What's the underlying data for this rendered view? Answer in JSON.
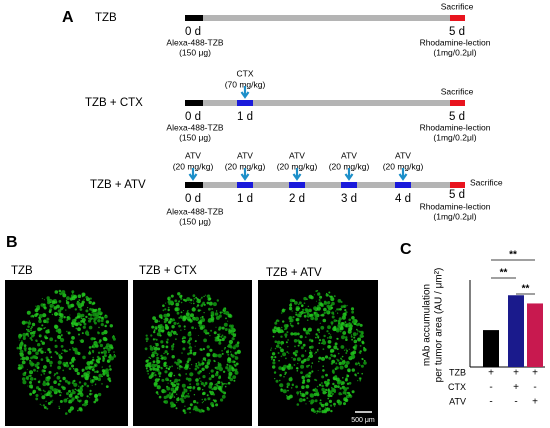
{
  "panel_a": {
    "label": "A",
    "timelines": [
      {
        "name": "TZB",
        "sacrifice": "Sacrifice",
        "days": [
          "0 d",
          "5 d"
        ],
        "start_label": [
          "Alexa-488-TZB",
          "(150 μg)"
        ],
        "end_label": [
          "Rhodamine-lection",
          "(1mg/0.2μl)"
        ],
        "doses": []
      },
      {
        "name": "TZB + CTX",
        "sacrifice": "Sacrifice",
        "days": [
          "0 d",
          "1 d",
          "5 d"
        ],
        "start_label": [
          "Alexa-488-TZB",
          "(150 μg)"
        ],
        "end_label": [
          "Rhodamine-lection",
          "(1mg/0.2μl)"
        ],
        "doses": [
          [
            "CTX",
            "(70 mg/kg)"
          ]
        ]
      },
      {
        "name": "TZB + ATV",
        "sacrifice": "Sacrifice",
        "days": [
          "0 d",
          "1 d",
          "2 d",
          "3 d",
          "4 d",
          "5 d"
        ],
        "start_label": [
          "Alexa-488-TZB",
          "(150 μg)"
        ],
        "end_label": [
          "Rhodamine-lection",
          "(1mg/0.2μl)"
        ],
        "doses": [
          [
            "ATV",
            "(20 mg/kg)"
          ],
          [
            "ATV",
            "(20 mg/kg)"
          ],
          [
            "ATV",
            "(20 mg/kg)"
          ],
          [
            "ATV",
            "(20 mg/kg)"
          ],
          [
            "ATV",
            "(20 mg/kg)"
          ]
        ]
      }
    ]
  },
  "panel_b": {
    "label": "B",
    "images": [
      "TZB",
      "TZB + CTX",
      "TZB + ATV"
    ],
    "scale_bar": "500 μm"
  },
  "chart_data": {
    "type": "bar",
    "label": "C",
    "y_label": [
      "mAb accumulation",
      "per tumor area (AU / μm²)"
    ],
    "categories": [
      null,
      null,
      null
    ],
    "values": [
      1.8,
      3.5,
      3.1
    ],
    "colors": [
      "#000000",
      "#1a1a8c",
      "#c8194f"
    ],
    "ylim": [
      0,
      4
    ],
    "significance": [
      "**",
      "**",
      "**"
    ],
    "treatment_rows": [
      {
        "name": "TZB",
        "marks": [
          "+",
          "+",
          "+"
        ]
      },
      {
        "name": "CTX",
        "marks": [
          "-",
          "+",
          "-"
        ]
      },
      {
        "name": "ATV",
        "marks": [
          "-",
          "-",
          "+"
        ]
      }
    ]
  }
}
